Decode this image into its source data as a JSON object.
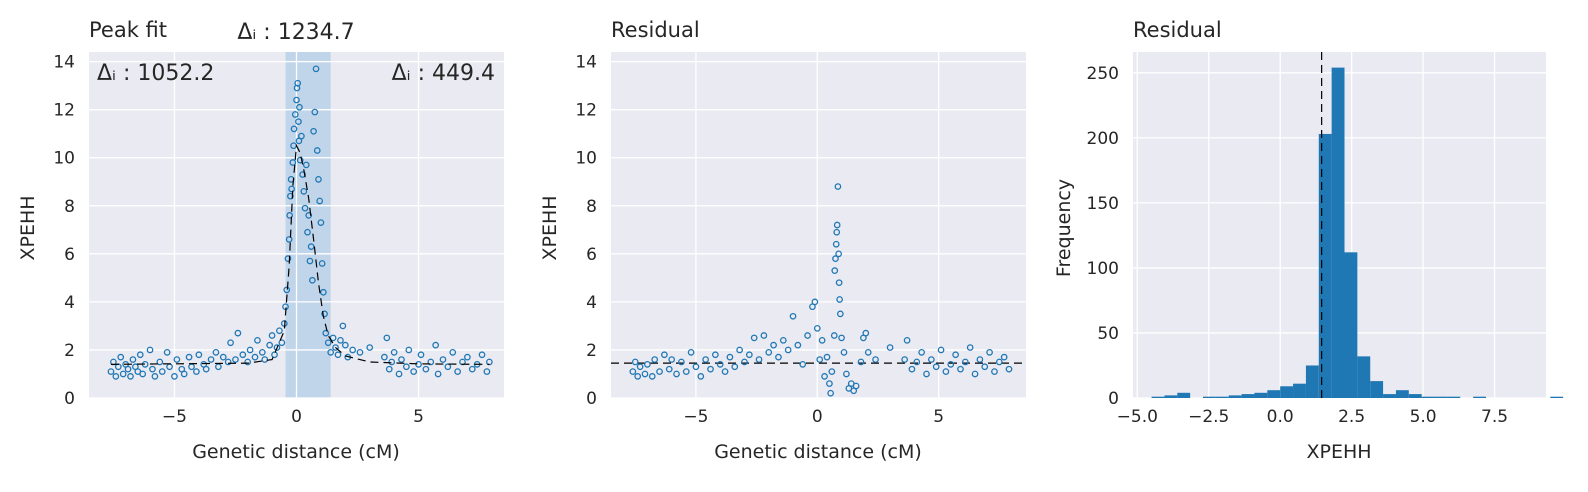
{
  "chart_data": [
    {
      "type": "scatter",
      "title": "Peak fit",
      "xlabel": "Genetic distance (cM)",
      "ylabel": "XPEHH",
      "xlim": [
        -8.5,
        8.5
      ],
      "ylim": [
        0,
        14.4
      ],
      "xticks": [
        -5,
        0,
        5
      ],
      "yticks": [
        0,
        2,
        4,
        6,
        8,
        10,
        12,
        14
      ],
      "grid": true,
      "annotations": {
        "left": "Δᵢ : 1052.2",
        "center": "Δᵢ : 1234.7",
        "right": "Δᵢ : 449.4"
      },
      "highlight_span": [
        -0.45,
        1.4
      ],
      "fit_curve": {
        "style": "dashed",
        "color": "#000000",
        "baseline": 1.4,
        "peak_x": 0.0,
        "peak_y": 10.5,
        "points": [
          [
            -7.6,
            1.4
          ],
          [
            -2,
            1.45
          ],
          [
            -1,
            1.6
          ],
          [
            -0.5,
            2.8
          ],
          [
            -0.3,
            5.5
          ],
          [
            -0.15,
            8.8
          ],
          [
            0,
            10.5
          ],
          [
            0.15,
            10.2
          ],
          [
            0.3,
            9.5
          ],
          [
            0.5,
            8.3
          ],
          [
            0.7,
            6.6
          ],
          [
            0.9,
            4.8
          ],
          [
            1.1,
            3.4
          ],
          [
            1.3,
            2.6
          ],
          [
            1.6,
            2.1
          ],
          [
            2,
            1.75
          ],
          [
            3,
            1.5
          ],
          [
            5,
            1.42
          ],
          [
            7.9,
            1.4
          ]
        ]
      },
      "series": [
        {
          "marker": "open-circle",
          "color": "#1f77b4",
          "points": [
            [
              -7.6,
              1.1
            ],
            [
              -7.5,
              1.5
            ],
            [
              -7.4,
              0.9
            ],
            [
              -7.3,
              1.3
            ],
            [
              -7.2,
              1.7
            ],
            [
              -7.1,
              1.0
            ],
            [
              -7.0,
              1.4
            ],
            [
              -6.9,
              1.2
            ],
            [
              -6.8,
              0.9
            ],
            [
              -6.7,
              1.6
            ],
            [
              -6.6,
              1.3
            ],
            [
              -6.5,
              1.1
            ],
            [
              -6.4,
              1.8
            ],
            [
              -6.3,
              1.0
            ],
            [
              -6.2,
              1.4
            ],
            [
              -6.0,
              2.0
            ],
            [
              -5.9,
              1.2
            ],
            [
              -5.8,
              0.9
            ],
            [
              -5.6,
              1.5
            ],
            [
              -5.5,
              1.1
            ],
            [
              -5.3,
              1.9
            ],
            [
              -5.2,
              1.3
            ],
            [
              -5.0,
              0.9
            ],
            [
              -4.9,
              1.6
            ],
            [
              -4.7,
              1.2
            ],
            [
              -4.6,
              1.0
            ],
            [
              -4.4,
              1.7
            ],
            [
              -4.3,
              1.3
            ],
            [
              -4.1,
              1.1
            ],
            [
              -4.0,
              1.8
            ],
            [
              -3.8,
              1.4
            ],
            [
              -3.7,
              1.2
            ],
            [
              -3.5,
              1.6
            ],
            [
              -3.3,
              1.9
            ],
            [
              -3.2,
              1.3
            ],
            [
              -3.0,
              1.7
            ],
            [
              -2.8,
              1.5
            ],
            [
              -2.7,
              2.3
            ],
            [
              -2.5,
              1.6
            ],
            [
              -2.4,
              2.7
            ],
            [
              -2.2,
              1.8
            ],
            [
              -2.0,
              1.5
            ],
            [
              -1.9,
              2.0
            ],
            [
              -1.7,
              1.7
            ],
            [
              -1.6,
              2.4
            ],
            [
              -1.4,
              1.9
            ],
            [
              -1.3,
              1.6
            ],
            [
              -1.1,
              2.2
            ],
            [
              -1.0,
              2.6
            ],
            [
              -0.9,
              1.8
            ],
            [
              -0.8,
              2.1
            ],
            [
              -0.7,
              2.8
            ],
            [
              -0.6,
              2.3
            ],
            [
              -0.5,
              3.1
            ],
            [
              -0.45,
              3.8
            ],
            [
              -0.4,
              4.5
            ],
            [
              -0.35,
              5.8
            ],
            [
              -0.3,
              6.6
            ],
            [
              -0.28,
              7.6
            ],
            [
              -0.25,
              8.4
            ],
            [
              -0.22,
              9.1
            ],
            [
              -0.2,
              8.7
            ],
            [
              -0.15,
              9.8
            ],
            [
              -0.12,
              10.5
            ],
            [
              -0.1,
              11.2
            ],
            [
              -0.05,
              11.8
            ],
            [
              0.0,
              12.4
            ],
            [
              0.02,
              12.9
            ],
            [
              0.05,
              13.1
            ],
            [
              0.08,
              11.5
            ],
            [
              0.1,
              10.7
            ],
            [
              0.12,
              12.1
            ],
            [
              0.15,
              9.9
            ],
            [
              0.2,
              10.9
            ],
            [
              0.25,
              9.3
            ],
            [
              0.3,
              8.6
            ],
            [
              0.35,
              7.9
            ],
            [
              0.4,
              9.7
            ],
            [
              0.45,
              6.9
            ],
            [
              0.5,
              7.6
            ],
            [
              0.55,
              5.7
            ],
            [
              0.6,
              6.3
            ],
            [
              0.65,
              4.9
            ],
            [
              0.7,
              11.1
            ],
            [
              0.75,
              11.9
            ],
            [
              0.8,
              13.7
            ],
            [
              0.85,
              10.3
            ],
            [
              0.9,
              9.1
            ],
            [
              0.95,
              8.2
            ],
            [
              1.0,
              7.3
            ],
            [
              1.05,
              5.6
            ],
            [
              1.1,
              4.4
            ],
            [
              1.15,
              3.5
            ],
            [
              1.2,
              2.7
            ],
            [
              1.3,
              2.3
            ],
            [
              1.4,
              1.9
            ],
            [
              1.5,
              2.5
            ],
            [
              1.6,
              2.1
            ],
            [
              1.7,
              1.8
            ],
            [
              1.8,
              2.4
            ],
            [
              1.9,
              3.0
            ],
            [
              2.0,
              2.2
            ],
            [
              2.1,
              1.7
            ],
            [
              2.3,
              2.0
            ],
            [
              2.6,
              1.9
            ],
            [
              3.0,
              2.1
            ],
            [
              3.6,
              1.7
            ],
            [
              3.7,
              2.5
            ],
            [
              3.8,
              1.2
            ],
            [
              3.9,
              1.5
            ],
            [
              4.0,
              1.9
            ],
            [
              4.2,
              1.0
            ],
            [
              4.3,
              1.6
            ],
            [
              4.5,
              1.3
            ],
            [
              4.6,
              2.0
            ],
            [
              4.8,
              1.1
            ],
            [
              5.0,
              1.4
            ],
            [
              5.1,
              1.8
            ],
            [
              5.3,
              1.2
            ],
            [
              5.5,
              1.5
            ],
            [
              5.7,
              2.2
            ],
            [
              5.8,
              1.0
            ],
            [
              6.0,
              1.6
            ],
            [
              6.2,
              1.3
            ],
            [
              6.4,
              1.9
            ],
            [
              6.6,
              1.1
            ],
            [
              6.8,
              1.5
            ],
            [
              7.0,
              1.7
            ],
            [
              7.2,
              1.2
            ],
            [
              7.4,
              1.4
            ],
            [
              7.6,
              1.8
            ],
            [
              7.8,
              1.1
            ],
            [
              7.9,
              1.5
            ]
          ]
        }
      ]
    },
    {
      "type": "scatter",
      "title": "Residual",
      "xlabel": "Genetic distance (cM)",
      "ylabel": "XPEHH",
      "xlim": [
        -8.5,
        8.6
      ],
      "ylim": [
        0,
        14.4
      ],
      "xticks": [
        -5,
        0,
        5
      ],
      "yticks": [
        0,
        2,
        4,
        6,
        8,
        10,
        12,
        14
      ],
      "grid": true,
      "reference_line": {
        "y": 1.45,
        "style": "dashed",
        "color": "#000000"
      },
      "series": [
        {
          "marker": "open-circle",
          "color": "#1f77b4",
          "points": [
            [
              -7.6,
              1.1
            ],
            [
              -7.5,
              1.5
            ],
            [
              -7.4,
              0.9
            ],
            [
              -7.3,
              1.3
            ],
            [
              -7.1,
              1.0
            ],
            [
              -7.0,
              1.4
            ],
            [
              -6.8,
              0.9
            ],
            [
              -6.7,
              1.6
            ],
            [
              -6.5,
              1.1
            ],
            [
              -6.3,
              1.8
            ],
            [
              -6.1,
              1.2
            ],
            [
              -6.0,
              1.6
            ],
            [
              -5.8,
              1.0
            ],
            [
              -5.6,
              1.5
            ],
            [
              -5.4,
              1.1
            ],
            [
              -5.2,
              1.9
            ],
            [
              -5.0,
              1.3
            ],
            [
              -4.8,
              0.9
            ],
            [
              -4.6,
              1.6
            ],
            [
              -4.4,
              1.2
            ],
            [
              -4.2,
              1.8
            ],
            [
              -4.0,
              1.4
            ],
            [
              -3.8,
              1.1
            ],
            [
              -3.6,
              1.7
            ],
            [
              -3.4,
              1.3
            ],
            [
              -3.2,
              2.0
            ],
            [
              -3.0,
              1.5
            ],
            [
              -2.8,
              1.8
            ],
            [
              -2.6,
              2.5
            ],
            [
              -2.4,
              1.6
            ],
            [
              -2.2,
              2.6
            ],
            [
              -2.0,
              1.9
            ],
            [
              -1.8,
              2.2
            ],
            [
              -1.6,
              1.7
            ],
            [
              -1.4,
              2.4
            ],
            [
              -1.2,
              2.0
            ],
            [
              -1.0,
              3.4
            ],
            [
              -0.8,
              2.2
            ],
            [
              -0.6,
              1.4
            ],
            [
              -0.4,
              2.6
            ],
            [
              -0.2,
              3.8
            ],
            [
              -0.1,
              4.0
            ],
            [
              0.0,
              2.9
            ],
            [
              0.1,
              1.6
            ],
            [
              0.2,
              2.4
            ],
            [
              0.3,
              0.9
            ],
            [
              0.4,
              1.7
            ],
            [
              0.5,
              0.6
            ],
            [
              0.55,
              0.2
            ],
            [
              0.6,
              1.1
            ],
            [
              0.7,
              2.6
            ],
            [
              0.72,
              5.3
            ],
            [
              0.75,
              5.8
            ],
            [
              0.78,
              6.4
            ],
            [
              0.8,
              6.9
            ],
            [
              0.82,
              7.2
            ],
            [
              0.85,
              8.8
            ],
            [
              0.88,
              6.0
            ],
            [
              0.9,
              4.8
            ],
            [
              0.92,
              4.1
            ],
            [
              0.95,
              3.5
            ],
            [
              1.0,
              2.5
            ],
            [
              1.1,
              1.9
            ],
            [
              1.2,
              1.0
            ],
            [
              1.3,
              0.4
            ],
            [
              1.4,
              0.6
            ],
            [
              1.5,
              0.3
            ],
            [
              1.6,
              0.5
            ],
            [
              1.8,
              1.5
            ],
            [
              1.9,
              2.5
            ],
            [
              2.0,
              2.7
            ],
            [
              2.1,
              1.9
            ],
            [
              2.4,
              1.6
            ],
            [
              3.0,
              2.1
            ],
            [
              3.6,
              1.6
            ],
            [
              3.7,
              2.4
            ],
            [
              3.9,
              1.2
            ],
            [
              4.1,
              1.5
            ],
            [
              4.3,
              1.9
            ],
            [
              4.5,
              1.0
            ],
            [
              4.7,
              1.6
            ],
            [
              4.9,
              1.3
            ],
            [
              5.1,
              2.0
            ],
            [
              5.3,
              1.1
            ],
            [
              5.5,
              1.4
            ],
            [
              5.7,
              1.8
            ],
            [
              5.9,
              1.2
            ],
            [
              6.1,
              1.5
            ],
            [
              6.3,
              2.1
            ],
            [
              6.5,
              1.0
            ],
            [
              6.7,
              1.6
            ],
            [
              6.9,
              1.3
            ],
            [
              7.1,
              1.9
            ],
            [
              7.3,
              1.1
            ],
            [
              7.5,
              1.5
            ],
            [
              7.7,
              1.7
            ],
            [
              7.9,
              1.2
            ]
          ]
        }
      ]
    },
    {
      "type": "bar",
      "subtype": "histogram",
      "title": "Residual",
      "xlabel": "XPEHH",
      "ylabel": "Frequency",
      "xlim": [
        -5.15,
        9.3
      ],
      "ylim": [
        0,
        266
      ],
      "xticks": [
        -5.0,
        -2.5,
        0.0,
        2.5,
        5.0,
        7.5
      ],
      "xticklabels": [
        "−5.0",
        "−2.5",
        "0.0",
        "2.5",
        "5.0",
        "7.5"
      ],
      "yticks": [
        0,
        50,
        100,
        150,
        200,
        250
      ],
      "grid": true,
      "color": "#1f77b4",
      "reference_line": {
        "x": 1.45,
        "style": "dashed",
        "color": "#000000"
      },
      "bin_width": 0.45,
      "bin_start": -4.5,
      "values": [
        1,
        2,
        4,
        0,
        1,
        1,
        2,
        3,
        4,
        6,
        9,
        11,
        25,
        203,
        254,
        112,
        32,
        13,
        3,
        6,
        3,
        1,
        1,
        1,
        0,
        1,
        0,
        0,
        0,
        0,
        0,
        1
      ]
    }
  ]
}
